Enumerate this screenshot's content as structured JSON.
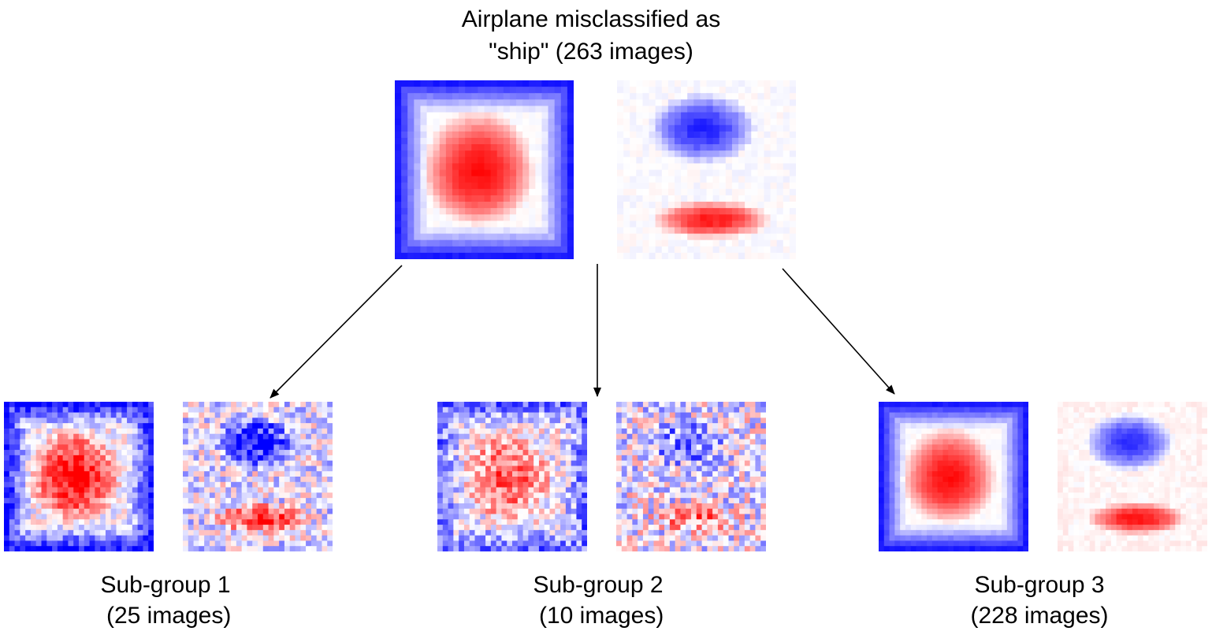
{
  "parent": {
    "title_line1": "Airplane misclassified as",
    "title_line2": "\"ship\" (263 images)"
  },
  "subgroups": [
    {
      "label": "Sub-group 1",
      "count": " (25 images)"
    },
    {
      "label": "Sub-group 2",
      "count": " (10 images)"
    },
    {
      "label": "Sub-group 3",
      "count": "(228 images)"
    }
  ],
  "colors": {
    "positive": "#ff0000",
    "negative": "#0000ff",
    "neutral": "#ffffff",
    "arrow": "#000000"
  },
  "heatmap_icons": {
    "pattern_centered": "blue-frame-red-center-heatmap",
    "pattern_split": "blue-top-red-bottom-heatmap"
  }
}
